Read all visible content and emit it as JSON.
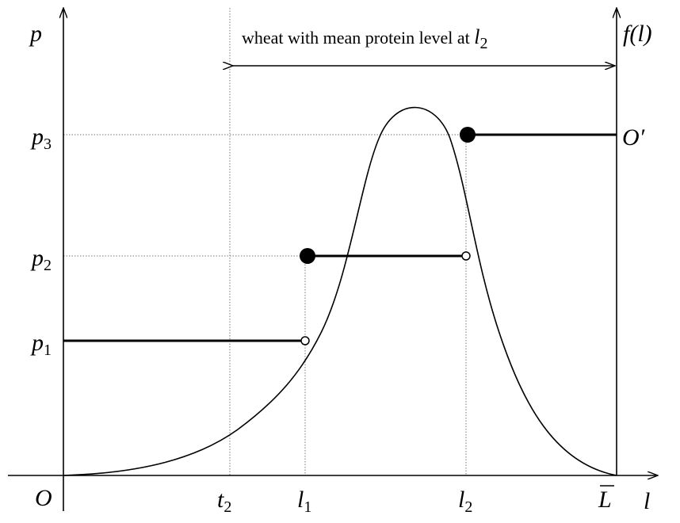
{
  "labels": {
    "p_axis": "p",
    "f_axis": "f(l)",
    "bracket": {
      "text": "wheat with mean protein level at ",
      "var": "l",
      "sub": "2"
    },
    "p3": {
      "var": "p",
      "sub": "3"
    },
    "p2": {
      "var": "p",
      "sub": "2"
    },
    "p1": {
      "var": "p",
      "sub": "1"
    },
    "origin": "O",
    "origin_prime": "O′",
    "t2": {
      "var": "t",
      "sub": "2"
    },
    "l1": {
      "var": "l",
      "sub": "1"
    },
    "l2": {
      "var": "l",
      "sub": "2"
    },
    "L_bar": "L",
    "l_axis": "l"
  }
}
